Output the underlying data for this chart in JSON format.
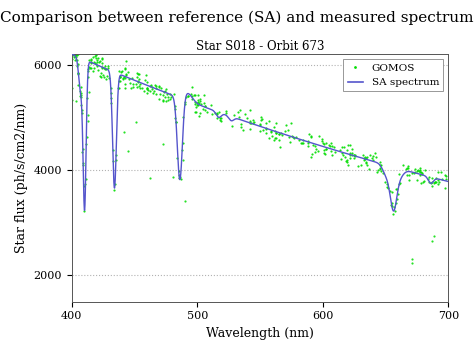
{
  "title": "Comparison between reference (SA) and measured spectrum",
  "subtitle": "Star S018 - Orbit 673",
  "xlabel": "Wavelength (nm)",
  "ylabel": "Star flux (ph/s/cm2/nm)",
  "xlim": [
    400,
    700
  ],
  "ylim": [
    1500,
    6200
  ],
  "yticks": [
    2000,
    4000,
    6000
  ],
  "xticks": [
    400,
    500,
    600,
    700
  ],
  "grid_color": "#aaaaaa",
  "bg_color": "#ffffff",
  "gomos_color": "#00dd00",
  "sa_color": "#5555cc",
  "legend_labels": [
    "GOMOS",
    "SA spectrum"
  ],
  "title_fontsize": 11,
  "subtitle_fontsize": 8.5,
  "axis_label_fontsize": 9,
  "tick_fontsize": 8
}
